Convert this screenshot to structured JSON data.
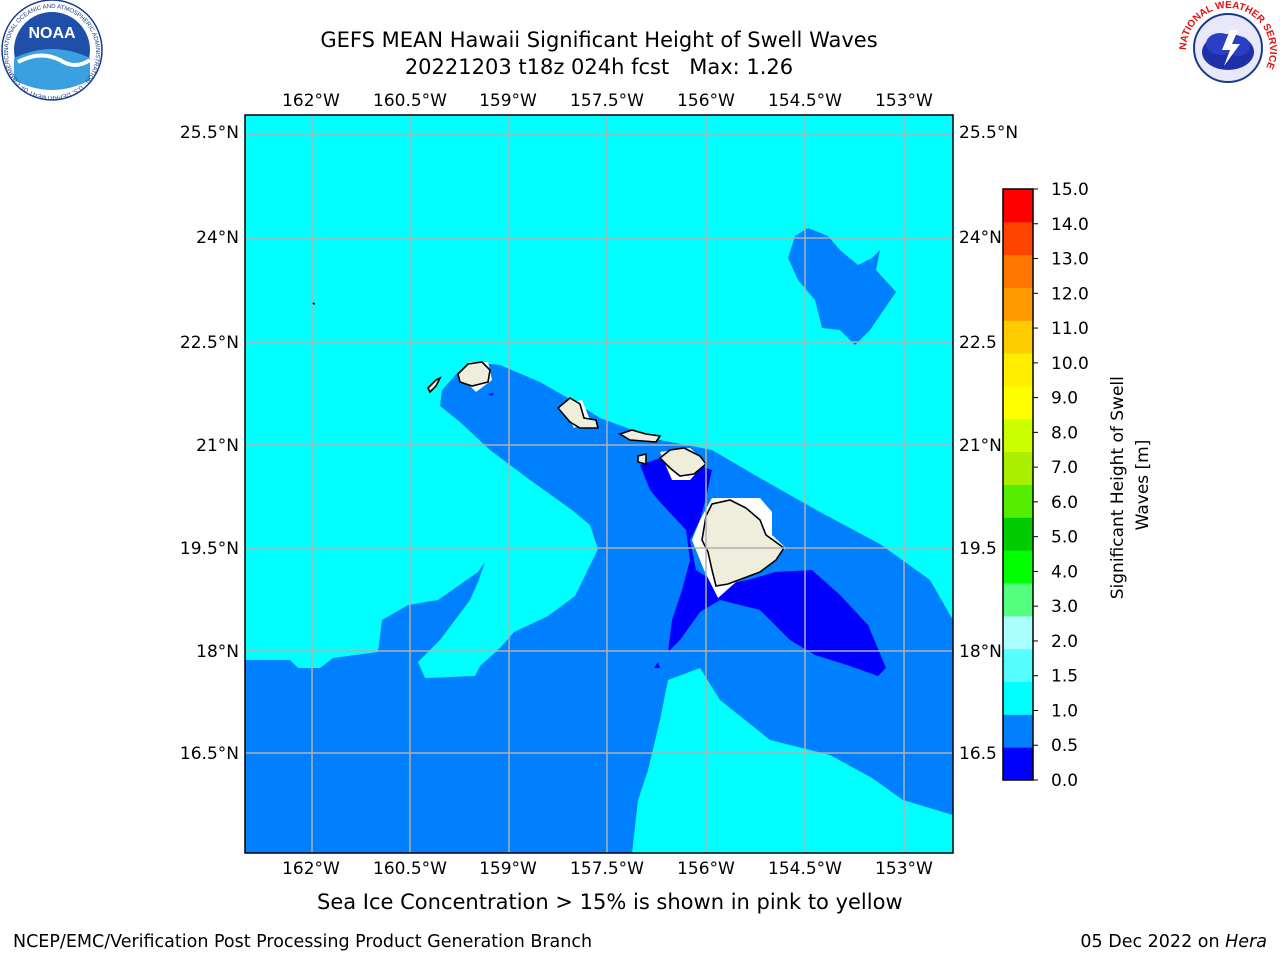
{
  "header": {
    "title_line1": "GEFS MEAN Hawaii Significant Height of Swell Waves",
    "title_line2": "20221203 t18z 024h fcst   Max: 1.26"
  },
  "logos": {
    "left": "noaa-logo",
    "left_text": "NOAA",
    "left_ring_text": "NATIONAL OCEANIC AND ATMOSPHERIC ADMINISTRATION · U.S. DEPARTMENT OF COMMERCE",
    "right": "nws-logo",
    "right_ring_text": "NATIONAL WEATHER SERVICE"
  },
  "map": {
    "lon_ticks_top": [
      "162°W",
      "160.5°W",
      "159°W",
      "157.5°W",
      "156°W",
      "154.5°W",
      "153°W"
    ],
    "lon_ticks_bottom": [
      "162°W",
      "160.5°W",
      "159°W",
      "157.5°W",
      "156°W",
      "154.5°W",
      "153°W"
    ],
    "lat_ticks_left": [
      "25.5°N",
      "24°N",
      "22.5°N",
      "21°N",
      "19.5°N",
      "18°N",
      "16.5°N"
    ],
    "lat_ticks_right": [
      "25.5°N",
      "24°N",
      "22.5",
      "21°N",
      "19.5",
      "18°N",
      "16.5"
    ],
    "colors": {
      "band_0_0.5": "#0000ff",
      "band_0.5_1.0": "#0080ff",
      "band_1.0_1.5": "#00ffff",
      "land": "#efeedd",
      "grid": "#b0b0b0"
    }
  },
  "colorbar": {
    "label": "Significant Height of Swell Waves [m]",
    "levels": [
      "0.0",
      "0.5",
      "1.0",
      "1.5",
      "2.0",
      "3.0",
      "4.0",
      "5.0",
      "6.0",
      "7.0",
      "8.0",
      "9.0",
      "10.0",
      "11.0",
      "12.0",
      "13.0",
      "14.0",
      "15.0"
    ],
    "colors": [
      "#0000ff",
      "#0080ff",
      "#00ffff",
      "#55ffff",
      "#aaffff",
      "#55ff80",
      "#00ff00",
      "#00cc00",
      "#55ee00",
      "#aaee00",
      "#ccff00",
      "#ffff00",
      "#ffee00",
      "#ffcc00",
      "#ff9900",
      "#ff7700",
      "#ff4400",
      "#ff0000"
    ]
  },
  "note": "Sea Ice Concentration > 15% is shown in pink to yellow",
  "footer": {
    "left": "NCEP/EMC/Verification Post Processing Product Generation Branch",
    "right_date": "05 Dec 2022 on",
    "right_host": "Hera"
  }
}
